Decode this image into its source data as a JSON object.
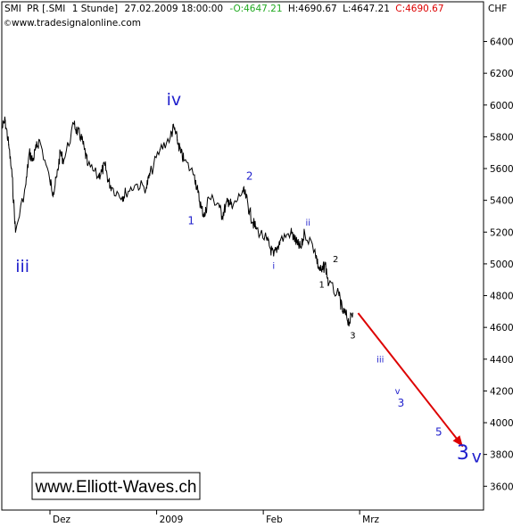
{
  "header": {
    "symbol": "SMI",
    "exchange": "PR [.SMI",
    "interval": "1 Stunde]",
    "datetime": "27.02.2009 18:00:00",
    "open": "-O:4647.21",
    "high": "H:4690.67",
    "low": "L:4647.21",
    "close": "C:4690.67",
    "website": "www.tradesignalonline.com",
    "currency": "CHF"
  },
  "watermark": "www.Elliott-Waves.ch",
  "colors": {
    "open": "#22aa22",
    "close": "#dd0000",
    "wave_labels": "#1f1fcc",
    "minor_labels": "#000000",
    "arrow": "#dd0000",
    "price_line": "#000000"
  },
  "chart_data": {
    "type": "line",
    "title": "",
    "xlabel": "",
    "ylabel": "",
    "ylim": [
      3450,
      6650
    ],
    "y_ticks": [
      3600,
      3800,
      4000,
      4200,
      4400,
      4600,
      4800,
      5000,
      5200,
      5400,
      5600,
      5800,
      6000,
      6200,
      6400
    ],
    "x_tick_labels": [
      "Dez",
      "2009",
      "Feb",
      "Mrz"
    ],
    "x_ticks": [
      "2008-12-01",
      "2009-01-01",
      "2009-02-01",
      "2009-03-01"
    ],
    "grid": false,
    "series": [
      {
        "points": [
          [
            "2008-11-17",
            5850
          ],
          [
            "2008-11-18",
            5900
          ],
          [
            "2008-11-19",
            5750
          ],
          [
            "2008-11-20",
            5550
          ],
          [
            "2008-11-21",
            5200
          ],
          [
            "2008-11-24",
            5500
          ],
          [
            "2008-11-25",
            5700
          ],
          [
            "2008-11-26",
            5650
          ],
          [
            "2008-11-27",
            5730
          ],
          [
            "2008-11-28",
            5780
          ],
          [
            "2008-12-01",
            5520
          ],
          [
            "2008-12-02",
            5450
          ],
          [
            "2008-12-03",
            5550
          ],
          [
            "2008-12-04",
            5700
          ],
          [
            "2008-12-05",
            5650
          ],
          [
            "2008-12-08",
            5880
          ],
          [
            "2008-12-09",
            5830
          ],
          [
            "2008-12-10",
            5800
          ],
          [
            "2008-12-11",
            5720
          ],
          [
            "2008-12-12",
            5620
          ],
          [
            "2008-12-15",
            5550
          ],
          [
            "2008-12-16",
            5580
          ],
          [
            "2008-12-17",
            5620
          ],
          [
            "2008-12-18",
            5520
          ],
          [
            "2008-12-19",
            5480
          ],
          [
            "2008-12-22",
            5420
          ],
          [
            "2008-12-23",
            5450
          ],
          [
            "2008-12-26",
            5500
          ],
          [
            "2008-12-29",
            5480
          ],
          [
            "2008-12-30",
            5560
          ],
          [
            "2009-01-02",
            5720
          ],
          [
            "2009-01-05",
            5800
          ],
          [
            "2009-01-06",
            5860
          ],
          [
            "2009-01-07",
            5780
          ],
          [
            "2009-01-08",
            5700
          ],
          [
            "2009-01-09",
            5650
          ],
          [
            "2009-01-12",
            5560
          ],
          [
            "2009-01-13",
            5450
          ],
          [
            "2009-01-14",
            5350
          ],
          [
            "2009-01-15",
            5300
          ],
          [
            "2009-01-16",
            5420
          ],
          [
            "2009-01-19",
            5380
          ],
          [
            "2009-01-20",
            5300
          ],
          [
            "2009-01-21",
            5360
          ],
          [
            "2009-01-22",
            5400
          ],
          [
            "2009-01-23",
            5350
          ],
          [
            "2009-01-26",
            5460
          ],
          [
            "2009-01-27",
            5420
          ],
          [
            "2009-01-28",
            5330
          ],
          [
            "2009-01-29",
            5260
          ],
          [
            "2009-01-30",
            5220
          ],
          [
            "2009-02-02",
            5150
          ],
          [
            "2009-02-03",
            5100
          ],
          [
            "2009-02-04",
            5050
          ],
          [
            "2009-02-05",
            5100
          ],
          [
            "2009-02-06",
            5150
          ],
          [
            "2009-02-09",
            5200
          ],
          [
            "2009-02-10",
            5160
          ],
          [
            "2009-02-11",
            5120
          ],
          [
            "2009-02-12",
            5100
          ],
          [
            "2009-02-13",
            5200
          ],
          [
            "2009-02-16",
            5090
          ],
          [
            "2009-02-17",
            4980
          ],
          [
            "2009-02-18",
            4950
          ],
          [
            "2009-02-19",
            5000
          ],
          [
            "2009-02-20",
            4870
          ],
          [
            "2009-02-23",
            4800
          ],
          [
            "2009-02-24",
            4700
          ],
          [
            "2009-02-25",
            4680
          ],
          [
            "2009-02-26",
            4630
          ],
          [
            "2009-02-27",
            4690
          ]
        ]
      }
    ],
    "forecast_arrow": {
      "from": [
        "2009-02-27",
        4690
      ],
      "to": [
        "2009-03-31",
        3850
      ]
    },
    "annotations": [
      {
        "text": "iii",
        "x": "2008-11-23",
        "y": 4950,
        "style": "major"
      },
      {
        "text": "iv",
        "x": "2009-01-06",
        "y": 6000,
        "style": "major"
      },
      {
        "text": "1",
        "x": "2009-01-11",
        "y": 5250,
        "style": "minor-blue"
      },
      {
        "text": "2",
        "x": "2009-01-28",
        "y": 5530,
        "style": "minor-blue"
      },
      {
        "text": "i",
        "x": "2009-02-04",
        "y": 4970,
        "style": "tiny-blue"
      },
      {
        "text": "ii",
        "x": "2009-02-14",
        "y": 5240,
        "style": "tiny-blue"
      },
      {
        "text": "2",
        "x": "2009-02-22",
        "y": 5010,
        "style": "tiny-black"
      },
      {
        "text": "1",
        "x": "2009-02-18",
        "y": 4850,
        "style": "tiny-black"
      },
      {
        "text": "3",
        "x": "2009-02-27",
        "y": 4530,
        "style": "tiny-black"
      },
      {
        "text": "iii",
        "x": "2009-03-07",
        "y": 4380,
        "style": "tiny-blue"
      },
      {
        "text": "v",
        "x": "2009-03-12",
        "y": 4180,
        "style": "tiny-blue"
      },
      {
        "text": "3",
        "x": "2009-03-13",
        "y": 4100,
        "style": "minor-blue"
      },
      {
        "text": "5",
        "x": "2009-03-24",
        "y": 3920,
        "style": "minor-blue"
      },
      {
        "text": "3",
        "x": "2009-03-31",
        "y": 3770,
        "style": "big"
      },
      {
        "text": "v",
        "x": "2009-04-04",
        "y": 3750,
        "style": "major"
      }
    ]
  }
}
